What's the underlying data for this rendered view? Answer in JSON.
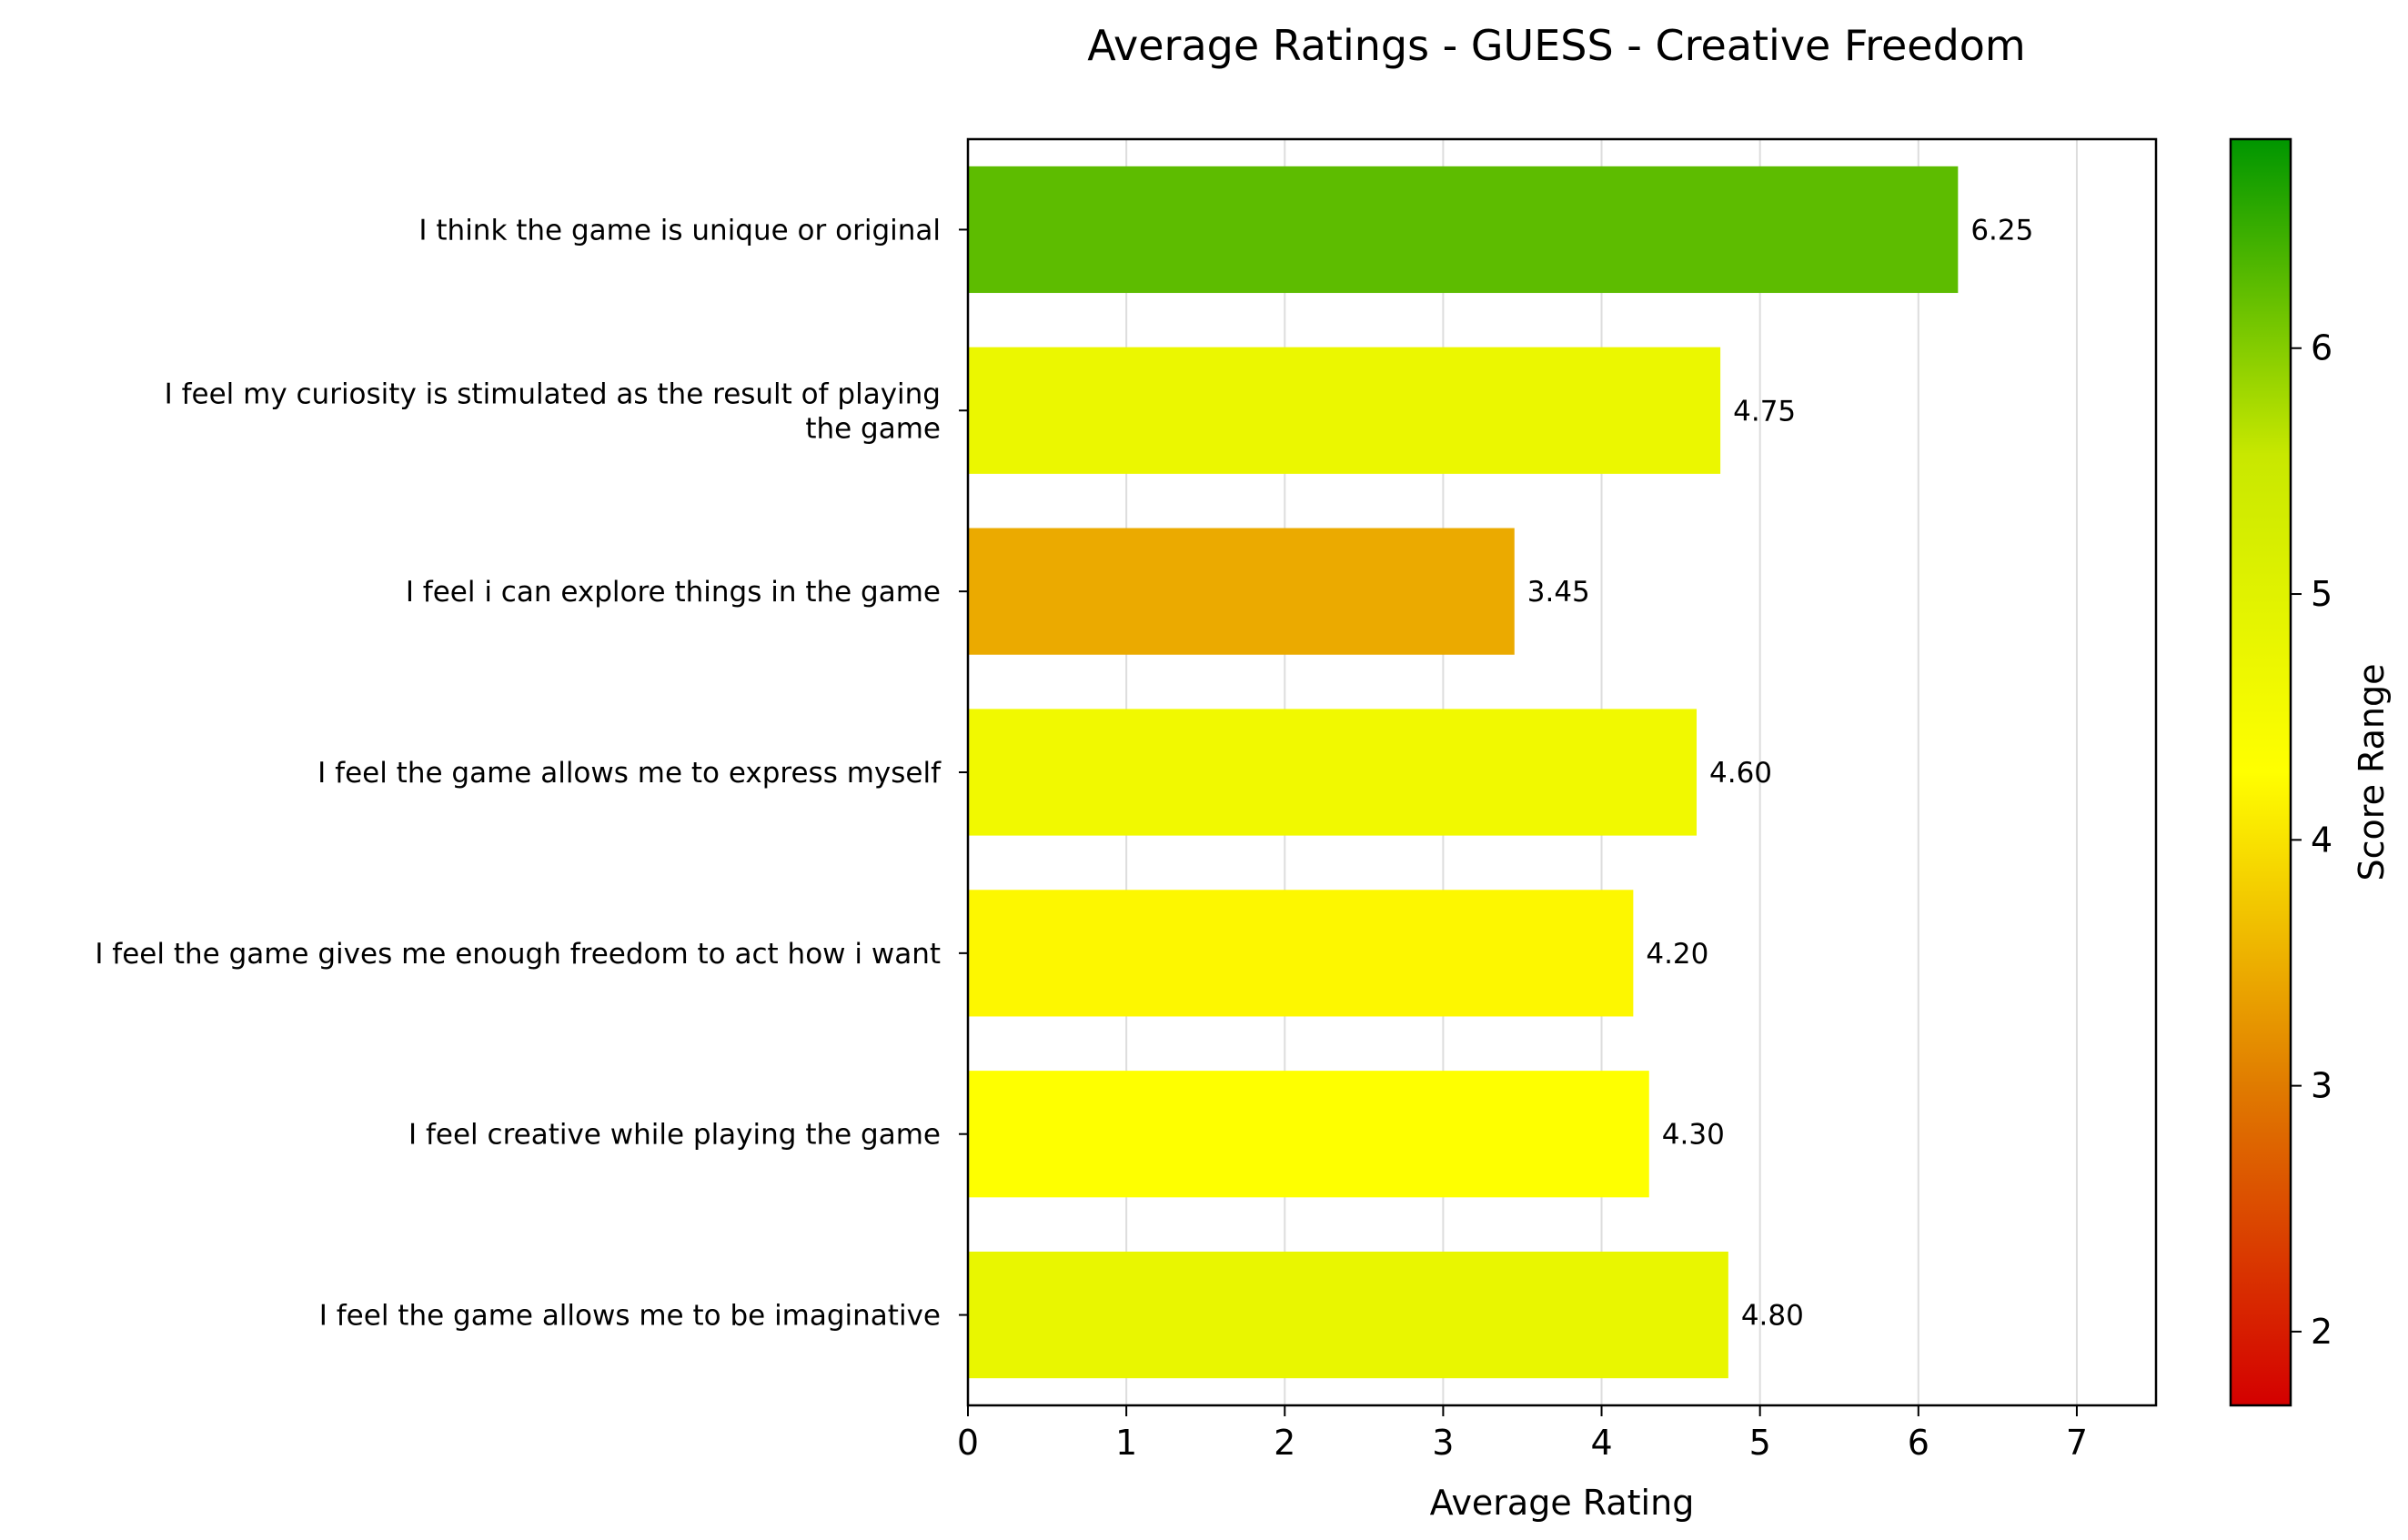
{
  "chart_data": {
    "type": "bar",
    "orientation": "horizontal",
    "title": "Average Ratings - GUESS - Creative Freedom",
    "xlabel": "Average Rating",
    "ylabel": "",
    "xlim": [
      0,
      7.5
    ],
    "xticks": [
      "0",
      "1",
      "2",
      "3",
      "4",
      "5",
      "6",
      "7"
    ],
    "grid": "vertical",
    "categories": [
      "I think the game is unique or original",
      "I feel my curiosity is stimulated as the result of playing the game",
      "I feel i can explore things in the game",
      "I feel the game allows me to express myself",
      "I feel the game gives me enough freedom to act how i want",
      "I feel creative while playing the game",
      "I feel the game allows me to be imaginative"
    ],
    "category_lines": [
      [
        "I think the game is unique or original"
      ],
      [
        "I feel my curiosity is stimulated as the result of playing",
        "the game"
      ],
      [
        "I feel i can explore things in the game"
      ],
      [
        "I feel the game allows me to express myself"
      ],
      [
        "I feel the game gives me enough freedom to act how i want"
      ],
      [
        "I feel creative while playing the game"
      ],
      [
        "I feel the game allows me to be imaginative"
      ]
    ],
    "values": [
      6.25,
      4.75,
      3.45,
      4.6,
      4.2,
      4.3,
      4.8
    ],
    "value_labels": [
      "6.25",
      "4.75",
      "3.45",
      "4.60",
      "4.20",
      "4.30",
      "4.80"
    ],
    "colorbar": {
      "label": "Score Range",
      "range": [
        1.7,
        6.85
      ],
      "ticks": [
        "2",
        "3",
        "4",
        "5",
        "6"
      ],
      "colors": [
        "#d40000",
        "#e07a00",
        "#ffff00",
        "#c8e800",
        "#009600"
      ]
    }
  }
}
